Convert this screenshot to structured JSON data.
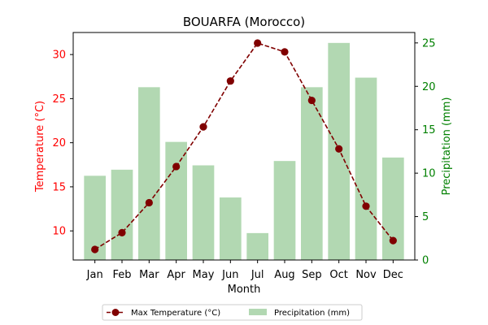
{
  "chart_data": {
    "type": "bar",
    "title": "BOUARFA (Morocco)",
    "xlabel": "Month",
    "ylabel_left": "Temperature (°C)",
    "ylabel_right": "Precipitation (mm)",
    "categories": [
      "Jan",
      "Feb",
      "Mar",
      "Apr",
      "May",
      "Jun",
      "Jul",
      "Aug",
      "Sep",
      "Oct",
      "Nov",
      "Dec"
    ],
    "series": [
      {
        "name": "Max Temperature (°C)",
        "type": "line",
        "axis": "left",
        "color": "#800000",
        "values": [
          7.9,
          9.8,
          13.2,
          17.3,
          21.8,
          27.0,
          31.3,
          30.3,
          24.8,
          19.3,
          12.8,
          8.9
        ]
      },
      {
        "name": "Precipitation (mm)",
        "type": "bar",
        "axis": "right",
        "color": "#b2d8b2",
        "values": [
          9.7,
          10.4,
          19.9,
          13.6,
          10.9,
          7.2,
          3.1,
          11.4,
          19.9,
          25.0,
          21.0,
          11.8
        ]
      }
    ],
    "ylim_left": [
      6.7,
      32.5
    ],
    "yticks_left": [
      "10",
      "15",
      "20",
      "25",
      "30"
    ],
    "ylim_right": [
      0,
      26.2
    ],
    "yticks_right": [
      "0",
      "5",
      "10",
      "15",
      "20",
      "25"
    ],
    "left_axis_color": "#ff0000",
    "right_axis_color": "#008000",
    "grid": false,
    "legend_position": "bottom-center"
  }
}
